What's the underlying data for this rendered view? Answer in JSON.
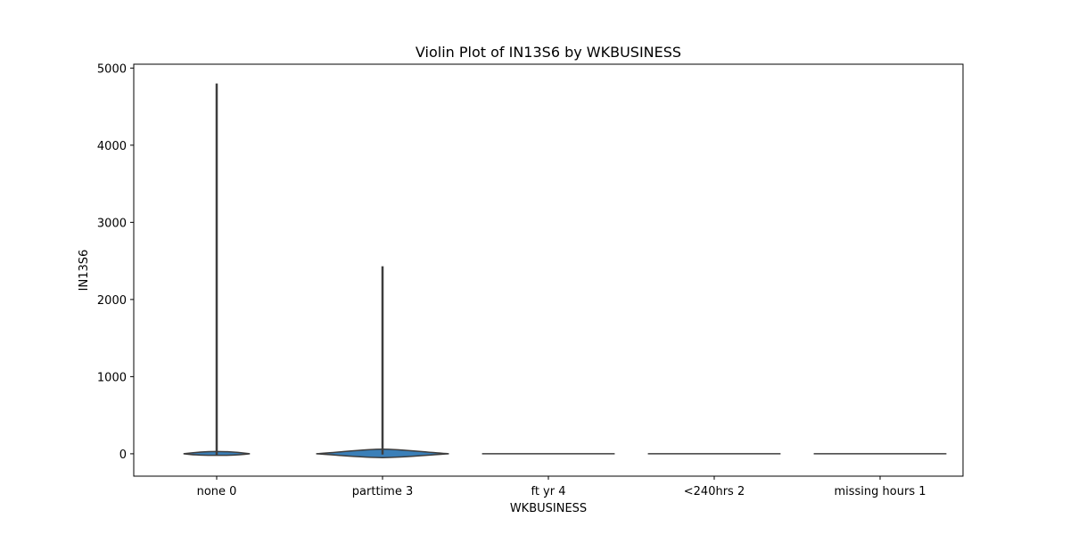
{
  "chart_data": {
    "type": "violin",
    "title": "Violin Plot of IN13S6 by WKBUSINESS",
    "xlabel": "WKBUSINESS",
    "ylabel": "IN13S6",
    "ylim": [
      -290,
      5050
    ],
    "yticks": [
      0,
      1000,
      2000,
      3000,
      4000,
      5000
    ],
    "grid": false,
    "categories": [
      "none 0",
      "parttime 3",
      "ft yr 4",
      "<240hrs 2",
      "missing hours 1"
    ],
    "violins": [
      {
        "category": "none 0",
        "min": -15,
        "max": 4800,
        "body_low": -20,
        "body_high": 30,
        "body_halfwidth": 0.4,
        "color": "#3a7fb8"
      },
      {
        "category": "parttime 3",
        "min": -10,
        "max": 2430,
        "body_low": -50,
        "body_high": 60,
        "body_halfwidth": 0.8,
        "color": "#3a7fb8"
      },
      {
        "category": "ft yr 4",
        "min": 0,
        "max": 0,
        "body_low": 0,
        "body_high": 0,
        "body_halfwidth": 0.8,
        "color": "#3a7fb8"
      },
      {
        "category": "<240hrs 2",
        "min": 0,
        "max": 0,
        "body_low": 0,
        "body_high": 0,
        "body_halfwidth": 0.8,
        "color": "#3a7fb8"
      },
      {
        "category": "missing hours 1",
        "min": 0,
        "max": 0,
        "body_low": 0,
        "body_high": 0,
        "body_halfwidth": 0.8,
        "color": "#3a7fb8"
      }
    ]
  }
}
